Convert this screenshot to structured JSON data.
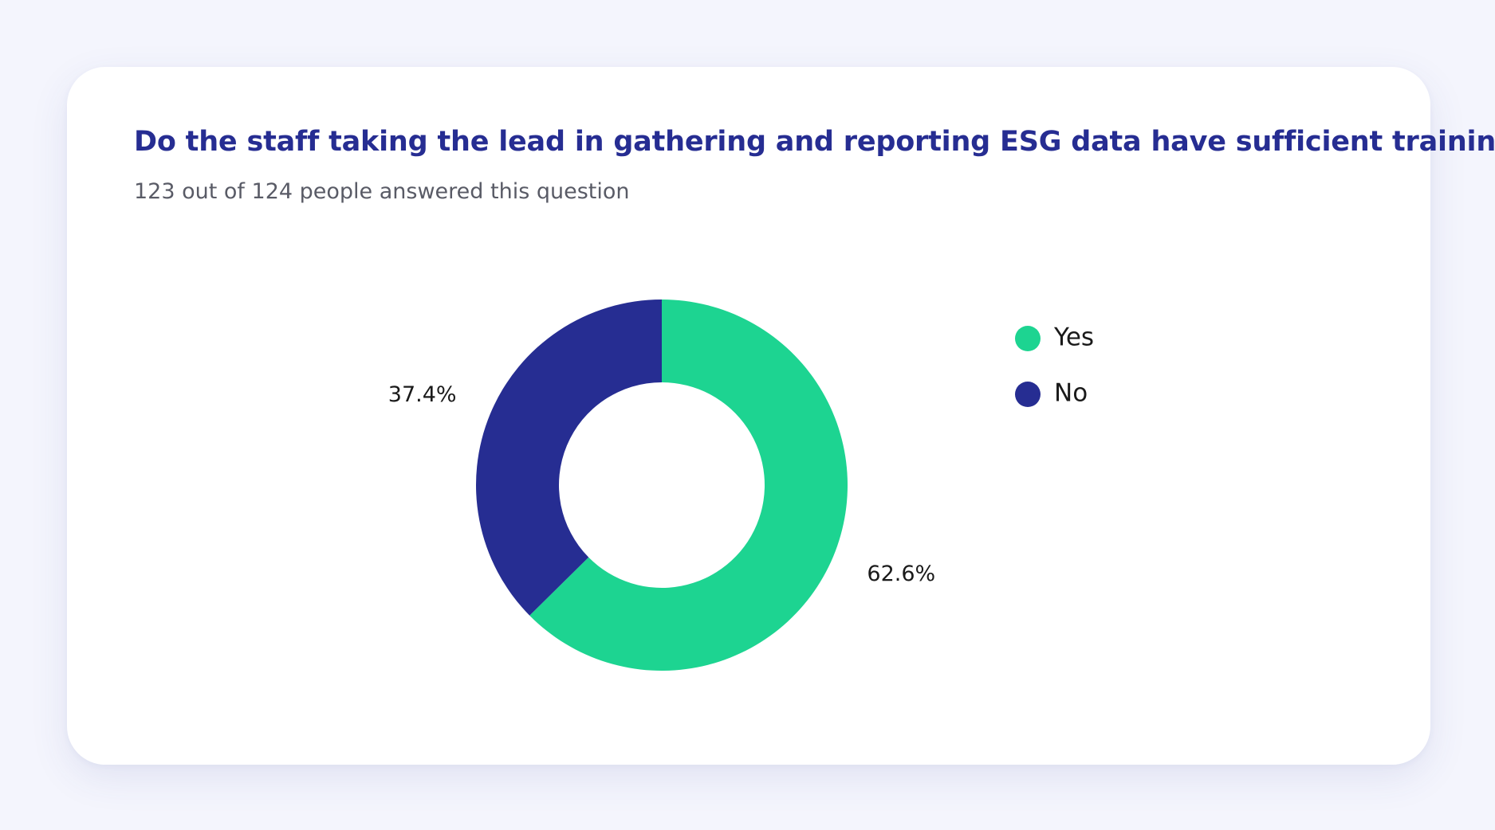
{
  "card": {
    "title": "Do the staff taking the lead in gathering and reporting ESG data have sufficient training?",
    "subtitle": "123 out of 124 people answered this question"
  },
  "chart_data": {
    "type": "pie",
    "variant": "donut",
    "title": "Do the staff taking the lead in gathering and reporting ESG data have sufficient training?",
    "subtitle": "123 out of 124 people answered this question",
    "start_angle": "12 o'clock, clockwise",
    "legend_position": "right",
    "series": [
      {
        "categories": [
          "Yes",
          "No"
        ],
        "values": [
          62.6,
          37.4
        ],
        "labels": [
          "62.6%",
          "37.4%"
        ],
        "colors": [
          "#1dd491",
          "#262d92"
        ]
      }
    ]
  }
}
